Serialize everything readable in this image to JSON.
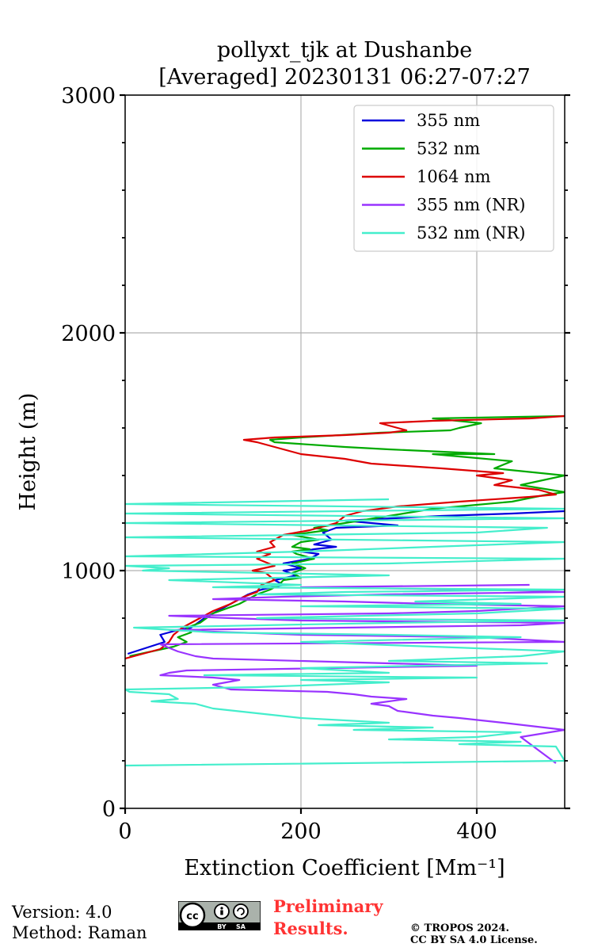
{
  "chart_data": {
    "type": "line",
    "title": [
      "pollyxt_tjk at Dushanbe",
      "[Averaged] 20230131 06:27-07:27"
    ],
    "xlabel": "Extinction Coefficient [Mm⁻¹]",
    "ylabel": "Height (m)",
    "xlim": [
      0,
      500
    ],
    "ylim": [
      0,
      3000
    ],
    "xticks": [
      0,
      200,
      400
    ],
    "yticks": [
      0,
      1000,
      2000,
      3000
    ],
    "xtick_labels": [
      "0",
      "200",
      "400"
    ],
    "ytick_labels": [
      "0",
      "1000",
      "2000",
      "3000"
    ],
    "grid": true,
    "legend_position": "top-right",
    "series": [
      {
        "name": "355 nm",
        "color": "#0000dd",
        "points": [
          [
            3,
            650
          ],
          [
            45,
            700
          ],
          [
            40,
            730
          ],
          [
            60,
            750
          ],
          [
            75,
            760
          ],
          [
            90,
            800
          ],
          [
            120,
            860
          ],
          [
            140,
            900
          ],
          [
            155,
            920
          ],
          [
            180,
            940
          ],
          [
            170,
            960
          ],
          [
            195,
            980
          ],
          [
            180,
            1000
          ],
          [
            200,
            1010
          ],
          [
            180,
            1030
          ],
          [
            210,
            1050
          ],
          [
            220,
            1070
          ],
          [
            200,
            1080
          ],
          [
            215,
            1090
          ],
          [
            240,
            1100
          ],
          [
            215,
            1110
          ],
          [
            235,
            1130
          ],
          [
            225,
            1160
          ],
          [
            240,
            1180
          ],
          [
            310,
            1190
          ],
          [
            250,
            1210
          ],
          [
            360,
            1230
          ],
          [
            440,
            1240
          ],
          [
            500,
            1250
          ]
        ]
      },
      {
        "name": "532 nm",
        "color": "#00aa00",
        "points": [
          [
            5,
            640
          ],
          [
            55,
            680
          ],
          [
            70,
            700
          ],
          [
            60,
            720
          ],
          [
            75,
            740
          ],
          [
            70,
            760
          ],
          [
            85,
            780
          ],
          [
            100,
            820
          ],
          [
            130,
            860
          ],
          [
            150,
            900
          ],
          [
            165,
            920
          ],
          [
            175,
            940
          ],
          [
            180,
            960
          ],
          [
            200,
            970
          ],
          [
            190,
            990
          ],
          [
            205,
            1010
          ],
          [
            190,
            1030
          ],
          [
            215,
            1050
          ],
          [
            195,
            1070
          ],
          [
            190,
            1080
          ],
          [
            210,
            1090
          ],
          [
            190,
            1100
          ],
          [
            200,
            1120
          ],
          [
            220,
            1130
          ],
          [
            190,
            1150
          ],
          [
            230,
            1170
          ],
          [
            215,
            1180
          ],
          [
            250,
            1200
          ],
          [
            300,
            1230
          ],
          [
            350,
            1260
          ],
          [
            440,
            1290
          ],
          [
            480,
            1320
          ],
          [
            500,
            1330
          ],
          [
            450,
            1360
          ],
          [
            500,
            1400
          ],
          [
            420,
            1430
          ],
          [
            440,
            1460
          ],
          [
            380,
            1480
          ],
          [
            350,
            1490
          ],
          [
            420,
            1490
          ],
          [
            300,
            1510
          ],
          [
            250,
            1520
          ],
          [
            170,
            1540
          ],
          [
            165,
            1550
          ],
          [
            200,
            1560
          ],
          [
            290,
            1580
          ],
          [
            370,
            1590
          ],
          [
            380,
            1600
          ],
          [
            405,
            1620
          ],
          [
            350,
            1640
          ],
          [
            500,
            1650
          ]
        ]
      },
      {
        "name": "1064 nm",
        "color": "#dd0000",
        "points": [
          [
            0,
            630
          ],
          [
            20,
            650
          ],
          [
            40,
            670
          ],
          [
            50,
            700
          ],
          [
            55,
            730
          ],
          [
            65,
            760
          ],
          [
            80,
            790
          ],
          [
            100,
            830
          ],
          [
            120,
            860
          ],
          [
            135,
            890
          ],
          [
            150,
            910
          ],
          [
            155,
            940
          ],
          [
            170,
            960
          ],
          [
            160,
            990
          ],
          [
            145,
            1000
          ],
          [
            170,
            1020
          ],
          [
            150,
            1050
          ],
          [
            165,
            1070
          ],
          [
            150,
            1080
          ],
          [
            170,
            1100
          ],
          [
            165,
            1120
          ],
          [
            180,
            1150
          ],
          [
            210,
            1170
          ],
          [
            240,
            1200
          ],
          [
            250,
            1230
          ],
          [
            270,
            1250
          ],
          [
            310,
            1270
          ],
          [
            380,
            1290
          ],
          [
            460,
            1310
          ],
          [
            490,
            1320
          ],
          [
            470,
            1340
          ],
          [
            420,
            1360
          ],
          [
            440,
            1380
          ],
          [
            400,
            1400
          ],
          [
            430,
            1410
          ],
          [
            360,
            1430
          ],
          [
            280,
            1450
          ],
          [
            250,
            1470
          ],
          [
            200,
            1490
          ],
          [
            180,
            1510
          ],
          [
            150,
            1540
          ],
          [
            135,
            1550
          ],
          [
            170,
            1560
          ],
          [
            250,
            1570
          ],
          [
            300,
            1580
          ],
          [
            320,
            1590
          ],
          [
            310,
            1600
          ],
          [
            290,
            1620
          ],
          [
            350,
            1630
          ],
          [
            460,
            1640
          ],
          [
            500,
            1650
          ]
        ]
      },
      {
        "name": "355 nm (NR)",
        "color": "#9933ff",
        "points": [
          [
            490,
            190
          ],
          [
            450,
            300
          ],
          [
            500,
            330
          ],
          [
            430,
            360
          ],
          [
            380,
            380
          ],
          [
            350,
            390
          ],
          [
            310,
            410
          ],
          [
            300,
            430
          ],
          [
            280,
            440
          ],
          [
            320,
            460
          ],
          [
            280,
            470
          ],
          [
            260,
            480
          ],
          [
            230,
            490
          ],
          [
            120,
            500
          ],
          [
            110,
            510
          ],
          [
            100,
            520
          ],
          [
            130,
            540
          ],
          [
            100,
            550
          ],
          [
            40,
            560
          ],
          [
            50,
            570
          ],
          [
            70,
            580
          ],
          [
            400,
            600
          ],
          [
            100,
            630
          ],
          [
            80,
            640
          ],
          [
            60,
            660
          ],
          [
            40,
            690
          ],
          [
            500,
            700
          ],
          [
            400,
            720
          ],
          [
            200,
            730
          ],
          [
            50,
            750
          ],
          [
            250,
            760
          ],
          [
            450,
            770
          ],
          [
            500,
            780
          ],
          [
            200,
            790
          ],
          [
            120,
            800
          ],
          [
            50,
            810
          ],
          [
            300,
            820
          ],
          [
            400,
            830
          ],
          [
            500,
            850
          ],
          [
            350,
            860
          ],
          [
            250,
            870
          ],
          [
            100,
            880
          ],
          [
            180,
            890
          ],
          [
            300,
            900
          ],
          [
            500,
            910
          ],
          [
            400,
            920
          ],
          [
            200,
            930
          ],
          [
            460,
            940
          ]
        ]
      },
      {
        "name": "532 nm (NR)",
        "color": "#44eecc",
        "points": [
          [
            0,
            180
          ],
          [
            500,
            200
          ],
          [
            490,
            260
          ],
          [
            380,
            270
          ],
          [
            450,
            280
          ],
          [
            300,
            290
          ],
          [
            400,
            300
          ],
          [
            450,
            320
          ],
          [
            260,
            330
          ],
          [
            350,
            340
          ],
          [
            220,
            350
          ],
          [
            300,
            360
          ],
          [
            250,
            370
          ],
          [
            200,
            380
          ],
          [
            150,
            400
          ],
          [
            100,
            420
          ],
          [
            80,
            440
          ],
          [
            30,
            450
          ],
          [
            60,
            460
          ],
          [
            50,
            480
          ],
          [
            5,
            490
          ],
          [
            0,
            500
          ],
          [
            150,
            510
          ],
          [
            300,
            530
          ],
          [
            200,
            540
          ],
          [
            400,
            550
          ],
          [
            90,
            560
          ],
          [
            300,
            570
          ],
          [
            200,
            590
          ],
          [
            480,
            610
          ],
          [
            300,
            620
          ],
          [
            450,
            640
          ],
          [
            500,
            660
          ],
          [
            350,
            680
          ],
          [
            200,
            700
          ],
          [
            450,
            720
          ],
          [
            300,
            730
          ],
          [
            100,
            740
          ],
          [
            10,
            760
          ],
          [
            300,
            780
          ],
          [
            500,
            790
          ],
          [
            150,
            800
          ],
          [
            400,
            820
          ],
          [
            500,
            840
          ],
          [
            200,
            850
          ],
          [
            450,
            860
          ],
          [
            330,
            870
          ],
          [
            500,
            890
          ],
          [
            150,
            900
          ],
          [
            250,
            910
          ],
          [
            500,
            920
          ],
          [
            100,
            930
          ],
          [
            200,
            940
          ],
          [
            50,
            960
          ],
          [
            300,
            980
          ],
          [
            20,
            1000
          ],
          [
            50,
            1010
          ],
          [
            0,
            1020
          ],
          [
            300,
            1030
          ],
          [
            500,
            1050
          ],
          [
            0,
            1060
          ],
          [
            200,
            1080
          ],
          [
            350,
            1100
          ],
          [
            500,
            1120
          ],
          [
            0,
            1140
          ],
          [
            400,
            1160
          ],
          [
            480,
            1180
          ],
          [
            0,
            1200
          ],
          [
            500,
            1220
          ],
          [
            0,
            1240
          ],
          [
            500,
            1260
          ],
          [
            0,
            1280
          ],
          [
            300,
            1300
          ]
        ]
      }
    ]
  },
  "footer": {
    "version": "Version: 4.0",
    "method": "Method: Raman",
    "preliminary_line1": "Preliminary",
    "preliminary_line2": "Results.",
    "copyright_line1": "© TROPOS 2024.",
    "copyright_line2": "CC BY SA 4.0 License.",
    "license_badge": {
      "cc": "cc",
      "by": "BY",
      "sa": "SA"
    }
  }
}
